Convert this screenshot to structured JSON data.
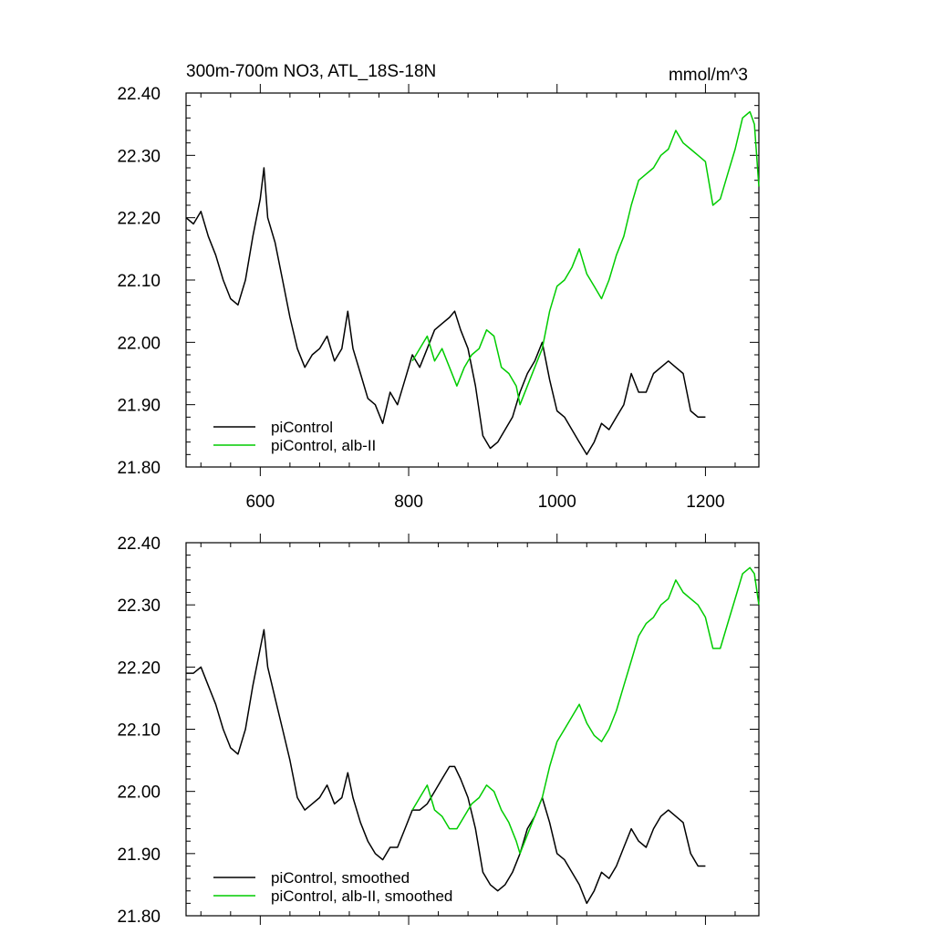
{
  "chart_data": [
    {
      "type": "line",
      "title_left": "300m-700m NO3, ATL_18S-18N",
      "title_right": "mmol/m^3",
      "xlim": [
        500,
        1272
      ],
      "ylim": [
        21.8,
        22.4
      ],
      "xticks": [
        600,
        800,
        1000,
        1200
      ],
      "xtick_labels": [
        "600",
        "800",
        "1000",
        "1200"
      ],
      "yticks": [
        21.8,
        21.9,
        22.0,
        22.1,
        22.2,
        22.3,
        22.4
      ],
      "ytick_labels": [
        "21.80",
        "21.90",
        "22.00",
        "22.10",
        "22.20",
        "22.30",
        "22.40"
      ],
      "grid": false,
      "legend_position": "bottom-left",
      "series": [
        {
          "name": "piControl",
          "color": "#000000",
          "x": [
            500,
            510,
            520,
            530,
            540,
            550,
            560,
            570,
            580,
            590,
            600,
            605,
            610,
            620,
            630,
            640,
            650,
            660,
            670,
            680,
            690,
            700,
            710,
            718,
            725,
            735,
            745,
            755,
            765,
            775,
            785,
            795,
            805,
            815,
            825,
            835,
            845,
            855,
            862,
            870,
            880,
            890,
            900,
            910,
            920,
            930,
            940,
            950,
            960,
            970,
            980,
            990,
            1000,
            1010,
            1020,
            1030,
            1040,
            1050,
            1060,
            1070,
            1080,
            1090,
            1100,
            1110,
            1120,
            1130,
            1140,
            1150,
            1160,
            1170,
            1180,
            1190,
            1200
          ],
          "values": [
            22.2,
            22.19,
            22.21,
            22.17,
            22.14,
            22.1,
            22.07,
            22.06,
            22.1,
            22.17,
            22.23,
            22.28,
            22.2,
            22.16,
            22.1,
            22.04,
            21.99,
            21.96,
            21.98,
            21.99,
            22.01,
            21.97,
            21.99,
            22.05,
            21.99,
            21.95,
            21.91,
            21.9,
            21.87,
            21.92,
            21.9,
            21.94,
            21.98,
            21.96,
            21.99,
            22.02,
            22.03,
            22.04,
            22.05,
            22.02,
            21.99,
            21.93,
            21.85,
            21.83,
            21.84,
            21.86,
            21.88,
            21.92,
            21.95,
            21.97,
            22.0,
            21.94,
            21.89,
            21.88,
            21.86,
            21.84,
            21.82,
            21.84,
            21.87,
            21.86,
            21.88,
            21.9,
            21.95,
            21.92,
            21.92,
            21.95,
            21.96,
            21.97,
            21.96,
            21.95,
            21.89,
            21.88,
            21.88
          ]
        },
        {
          "name": "piControl, alb-II",
          "color": "#00cc00",
          "x": [
            805,
            815,
            825,
            835,
            845,
            855,
            865,
            875,
            885,
            895,
            905,
            915,
            925,
            935,
            945,
            950,
            960,
            970,
            980,
            990,
            1000,
            1010,
            1020,
            1030,
            1040,
            1050,
            1060,
            1070,
            1080,
            1090,
            1100,
            1110,
            1120,
            1130,
            1140,
            1150,
            1160,
            1170,
            1180,
            1190,
            1200,
            1210,
            1220,
            1230,
            1240,
            1250,
            1260,
            1266,
            1272
          ],
          "values": [
            21.97,
            21.99,
            22.01,
            21.97,
            21.99,
            21.96,
            21.93,
            21.96,
            21.98,
            21.99,
            22.02,
            22.01,
            21.96,
            21.95,
            21.93,
            21.9,
            21.93,
            21.96,
            21.99,
            22.05,
            22.09,
            22.1,
            22.12,
            22.15,
            22.11,
            22.09,
            22.07,
            22.1,
            22.14,
            22.17,
            22.22,
            22.26,
            22.27,
            22.28,
            22.3,
            22.31,
            22.34,
            22.32,
            22.31,
            22.3,
            22.29,
            22.22,
            22.23,
            22.27,
            22.31,
            22.36,
            22.37,
            22.35,
            22.25
          ]
        }
      ]
    },
    {
      "type": "line",
      "title_left": "",
      "title_right": "",
      "xlim": [
        500,
        1272
      ],
      "ylim": [
        21.8,
        22.4
      ],
      "xticks": [
        600,
        800,
        1000,
        1200
      ],
      "xtick_labels": [],
      "yticks": [
        21.8,
        21.9,
        22.0,
        22.1,
        22.2,
        22.3,
        22.4
      ],
      "ytick_labels": [
        "21.80",
        "21.90",
        "22.00",
        "22.10",
        "22.20",
        "22.30",
        "22.40"
      ],
      "grid": false,
      "legend_position": "bottom-left",
      "series": [
        {
          "name": "piControl, smoothed",
          "color": "#000000",
          "x": [
            500,
            510,
            520,
            530,
            540,
            550,
            560,
            570,
            580,
            590,
            600,
            605,
            610,
            620,
            630,
            640,
            650,
            660,
            670,
            680,
            690,
            700,
            710,
            718,
            725,
            735,
            745,
            755,
            765,
            775,
            785,
            795,
            805,
            815,
            825,
            835,
            845,
            855,
            862,
            870,
            880,
            890,
            900,
            910,
            920,
            930,
            940,
            950,
            960,
            970,
            980,
            990,
            1000,
            1010,
            1020,
            1030,
            1040,
            1050,
            1060,
            1070,
            1080,
            1090,
            1100,
            1110,
            1120,
            1130,
            1140,
            1150,
            1160,
            1170,
            1180,
            1190,
            1200
          ],
          "values": [
            22.19,
            22.19,
            22.2,
            22.17,
            22.14,
            22.1,
            22.07,
            22.06,
            22.1,
            22.17,
            22.23,
            22.26,
            22.2,
            22.15,
            22.1,
            22.05,
            21.99,
            21.97,
            21.98,
            21.99,
            22.01,
            21.98,
            21.99,
            22.03,
            21.99,
            21.95,
            21.92,
            21.9,
            21.89,
            21.91,
            21.91,
            21.94,
            21.97,
            21.97,
            21.98,
            22.0,
            22.02,
            22.04,
            22.04,
            22.02,
            21.99,
            21.94,
            21.87,
            21.85,
            21.84,
            21.85,
            21.87,
            21.9,
            21.94,
            21.96,
            21.99,
            21.95,
            21.9,
            21.89,
            21.87,
            21.85,
            21.82,
            21.84,
            21.87,
            21.86,
            21.88,
            21.91,
            21.94,
            21.92,
            21.91,
            21.94,
            21.96,
            21.97,
            21.96,
            21.95,
            21.9,
            21.88,
            21.88
          ]
        },
        {
          "name": "piControl, alb-II, smoothed",
          "color": "#00cc00",
          "x": [
            805,
            815,
            825,
            835,
            845,
            855,
            865,
            875,
            885,
            895,
            905,
            915,
            925,
            935,
            945,
            950,
            960,
            970,
            980,
            990,
            1000,
            1010,
            1020,
            1030,
            1040,
            1050,
            1060,
            1070,
            1080,
            1090,
            1100,
            1110,
            1120,
            1130,
            1140,
            1150,
            1160,
            1170,
            1180,
            1190,
            1200,
            1210,
            1220,
            1230,
            1240,
            1250,
            1260,
            1266,
            1272
          ],
          "values": [
            21.97,
            21.99,
            22.01,
            21.97,
            21.96,
            21.94,
            21.94,
            21.96,
            21.98,
            21.99,
            22.01,
            22.0,
            21.97,
            21.95,
            21.92,
            21.9,
            21.93,
            21.96,
            21.99,
            22.04,
            22.08,
            22.1,
            22.12,
            22.14,
            22.11,
            22.09,
            22.08,
            22.1,
            22.13,
            22.17,
            22.21,
            22.25,
            22.27,
            22.28,
            22.3,
            22.31,
            22.34,
            22.32,
            22.31,
            22.3,
            22.28,
            22.23,
            22.23,
            22.27,
            22.31,
            22.35,
            22.36,
            22.35,
            22.3
          ]
        }
      ]
    }
  ]
}
